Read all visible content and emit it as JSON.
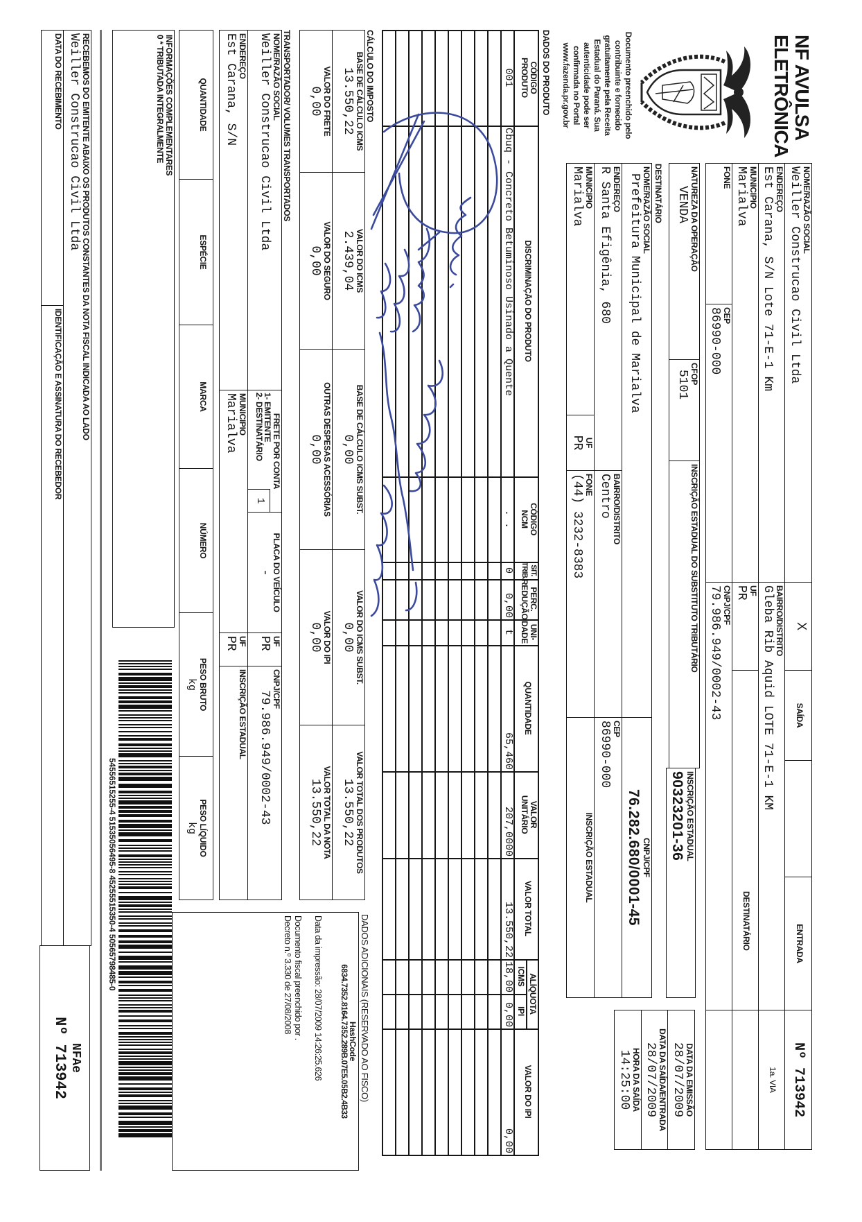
{
  "header": {
    "title_line1": "NF AVULSA",
    "title_line2": "ELETRÔNICA",
    "disclaimer": "Documento preenchido pelo\ncontribuinte e fornecido\ngratuitamente pela Receita\nEstadual do Paraná. Sua\nautenticidade pode ser\nconfirmada no Portal\nwww.fazenda.pr.gov.br"
  },
  "emitente": {
    "nome_label": "NOME/RAZÃO SOCIAL",
    "nome": "Weiller Construcao Civil Ltda",
    "endereco_label": "ENDEREÇO",
    "endereco": "Est Carana, S/N Lote 71-E-1 Km",
    "bairro_label": "BAIRRO/DISTRITO",
    "bairro": "Gleba Rib Aquid LOTE 71-E-1 KM",
    "municipio_label": "MUNICIPIO",
    "municipio": "Marialva",
    "uf_label": "UF",
    "uf": "PR",
    "fone_label": "FONE",
    "fone": "",
    "cep_label": "CEP",
    "cep": "86990-000",
    "cnpj_label": "CNPJ/CPF",
    "cnpj": "79.986.949/0002-43",
    "saida_mark": "X",
    "saida_label": "SAÍDA",
    "entrada_label": "ENTRADA",
    "numero": "Nº 713942",
    "via": "1a. VIA",
    "destinatario_label": "DESTINATÁRIO"
  },
  "operacao": {
    "natureza_label": "NATUREZA DA OPERAÇÃO",
    "natureza": "VENDA",
    "cfop_label": "CFOP",
    "cfop": "5101",
    "insc_subst_label": "INSCRIÇÃO ESTADUAL DO SUBSTITUTO TRIBUTÁRIO",
    "insc_subst": "",
    "insc_label": "INSCRIÇÃO ESTADUAL",
    "insc": "90323201-36"
  },
  "datas": {
    "emissao_label": "DATA DA EMISSÃO",
    "emissao": "28/07/2009",
    "saida_entrada_label": "DATA DA SAÍDA/ENTRADA",
    "saida_entrada": "28/07/2009",
    "hora_label": "HORA DA SAÍDA",
    "hora": "14:25:00"
  },
  "destinatario": {
    "section": "DESTINATÁRIO",
    "nome_label": "NOME/RAZÃO SOCIAL",
    "nome": "Prefeitura Municipal de Marialva",
    "cnpj_label": "CNPJ/CPF",
    "cnpj": "76.282.680/0001-45",
    "endereco_label": "ENDEREÇO",
    "endereco": "R Santa Efigênia, 680",
    "bairro_label": "BAIRRO/DISTRITO",
    "bairro": "Centro",
    "cep_label": "CEP",
    "cep": "86990-000",
    "municipio_label": "MUNICIPIO",
    "municipio": "Marialva",
    "uf_label": "UF",
    "uf": "PR",
    "fone_label": "FONE",
    "fone": "(44) 3232-8383",
    "insc_label": "INSCRIÇÃO ESTADUAL",
    "insc": ""
  },
  "produtos": {
    "section": "DADOS DO PRODUTO",
    "headers": {
      "codigo": "CÓDIGO\nPRODUTO",
      "descricao": "DISCRIMINAÇÃO DO PRODUTO",
      "ncm": "CÓDIGO\nNCM",
      "sit": "SIT.\nTRIB.",
      "perc": "PERC.\nREDUÇÃO",
      "unidade": "UNI-\nDADE",
      "quantidade": "QUANTIDADE",
      "valor_unitario": "VALOR\nUNITÁRIO",
      "valor_total": "VALOR TOTAL",
      "aliquota": "ALÍQUOTA",
      "icms": "ICMS",
      "ipi": "IPI",
      "valor_ipi": "VALOR DO IPI"
    },
    "rows": [
      {
        "codigo": "001",
        "descricao": "Cbuq - Concreto Betuminoso Usinado a Quente",
        "ncm": ". .",
        "sit": "0",
        "perc": "0,00",
        "unidade": "t",
        "quantidade": "65,460",
        "valor_unitario": "207,0000",
        "valor_total": "13.550,22",
        "icms": "18,00",
        "ipi": "0,00",
        "valor_ipi": "0,00"
      }
    ]
  },
  "imposto": {
    "section": "CÁLCULO DO IMPOSTO",
    "base_icms_label": "BASE DE CÁLCULO ICMS",
    "base_icms": "13.550,22",
    "valor_icms_label": "VALOR DO ICMS",
    "valor_icms": "2.439,04",
    "base_subst_label": "BASE DE CÁLCULO ICMS SUBST.",
    "base_subst": "0,00",
    "valor_subst_label": "VALOR DO ICMS SUBST.",
    "valor_subst": "0,00",
    "total_produtos_label": "VALOR TOTAL DOS PRODUTOS",
    "total_produtos": "13.550,22",
    "frete_label": "VALOR DO FRETE",
    "frete": "0,00",
    "seguro_label": "VALOR DO SEGURO",
    "seguro": "0,00",
    "outras_label": "OUTRAS DESPESAS ACESSÓRIAS",
    "outras": "0,00",
    "ipi_label": "VALOR DO IPI",
    "ipi": "0,00",
    "total_nota_label": "VALOR TOTAL DA NOTA",
    "total_nota": "13.550,22"
  },
  "transportador": {
    "section": "TRANSPORTADOR/ VOLUMES TRANSPORTADOS",
    "nome_label": "NOME/RAZÃO SOCIAL",
    "nome": "Weiller Construcao Civil Ltda",
    "frete_label": "FRETE POR CONTA",
    "frete_opt1": "1- EMITENTE",
    "frete_opt2": "2- DESTINATÁRIO",
    "frete": "1",
    "placa_label": "PLACA DO VEÍCULO",
    "placa": "-",
    "uf_label": "UF",
    "uf": "PR",
    "cnpj_label": "CNPJ/CPF",
    "cnpj": "79.986.949/0002-43",
    "endereco_label": "ENDEREÇO",
    "endereco": "Est Carana, S/N",
    "municipio_label": "MUNICIPIO",
    "municipio": "Marialva",
    "uf2_label": "UF",
    "uf2": "PR",
    "insc_label": "INSCRIÇÃO ESTADUAL",
    "insc": "",
    "quantidade_label": "QUANTIDADE",
    "quantidade": "",
    "especie_label": "ESPÉCIE",
    "especie": "",
    "marca_label": "MARCA",
    "marca": "",
    "numero_label": "NÚMERO",
    "numero": "",
    "peso_bruto_label": "PESO BRUTO",
    "peso_bruto": "kg",
    "peso_liquido_label": "PESO LÍQUIDO",
    "peso_liquido": "kg"
  },
  "adicionais": {
    "label": "DADOS ADICIONAIS (RESERVADO AO FISCO)",
    "hash_label": "HashCode",
    "hash": "6834.7352.8164.7352.289B.07E5.05B2.4B33",
    "impressao": "Data da impressão: 28/07/2009 14:26:25.626",
    "documento": "Documento fiscal preenchido por .",
    "decreto": "Decreto n.º 3.330 de 27/08/2008"
  },
  "informacoes": {
    "label": "INFORMAÇÕES COMPLEMENTARES",
    "texto": "0 * TRIBUTADA INTEGRALMENTE"
  },
  "barcode": {
    "digits": "54556515255-4 51535056495-8 45255515350-4 50565798485-0"
  },
  "canhoto": {
    "recebemos": "RECEBEMOS DO EMITENTE ABAIXO OS PRODUTOS CONSTANTES DA NOTA FISCAL INDICADA AO LADO",
    "emitente": "Weiller Construcao Civil Ltda",
    "data_label": "DATA DO RECEBIMENTO",
    "identificacao_label": "IDENTIFICAÇÃO E ASSINATURA DO RECEBEDOR",
    "nfae": "NFAe",
    "numero": "Nº 713942"
  },
  "colors": {
    "ink": "#161616",
    "handwriting": "#3b4a9c",
    "paper": "#ffffff"
  }
}
